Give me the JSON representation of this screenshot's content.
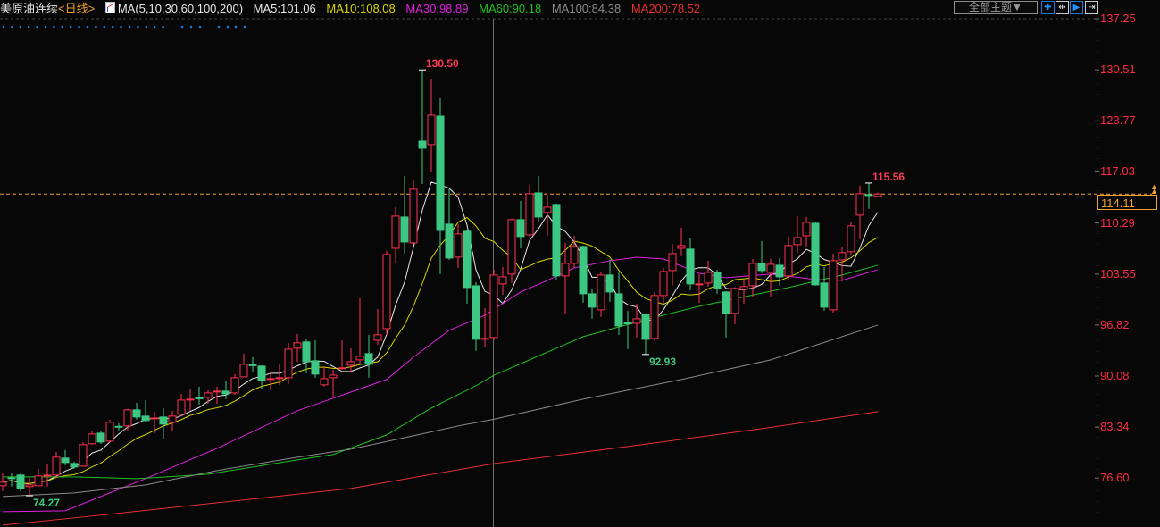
{
  "header": {
    "symbol": "美原油连续",
    "period": "<日线>",
    "ma_params": "MA(5,10,30,60,100,200)",
    "legend": [
      {
        "label": "MA5:101.06",
        "color": "#e8e8e8"
      },
      {
        "label": "MA10:108.08",
        "color": "#d8d800"
      },
      {
        "label": "MA30:98.89",
        "color": "#e020e0"
      },
      {
        "label": "MA60:90.18",
        "color": "#20c020"
      },
      {
        "label": "MA100:84.38",
        "color": "#8a8a8a"
      },
      {
        "label": "MA200:78.52",
        "color": "#e83030"
      }
    ]
  },
  "toolbar": {
    "theme_select": "全部主题▼",
    "icons": [
      "crosshair-icon",
      "fit-range-icon",
      "play-forward-icon",
      "move-right-icon"
    ]
  },
  "colors": {
    "up": "#ff3050",
    "down": "#3cc882",
    "axis_text": "#ff2a44",
    "current_price": "#f0a030",
    "cursor": "#707070",
    "dots": "#1e78d0"
  },
  "chart_data": {
    "type": "candlestick",
    "ylim": [
      70.16,
      137.25
    ],
    "y_ticks": [
      "137.25",
      "130.51",
      "123.77",
      "117.03",
      "110.29",
      "103.55",
      "96.82",
      "90.08",
      "83.34",
      "76.60"
    ],
    "current_price": "114.11",
    "cursor_index": 55,
    "candles_ohlc": [
      [
        75.6,
        77.24,
        74.89,
        76.07
      ],
      [
        76.66,
        77.24,
        75.48,
        76.54
      ],
      [
        77.01,
        77.24,
        74.89,
        75.24
      ],
      [
        75.48,
        76.66,
        74.27,
        75.71
      ],
      [
        75.6,
        77.83,
        75.48,
        76.89
      ],
      [
        76.89,
        78.42,
        75.48,
        77.01
      ],
      [
        77.01,
        80.07,
        76.66,
        79.37
      ],
      [
        79.25,
        80.31,
        78.3,
        78.66
      ],
      [
        78.54,
        78.78,
        77.83,
        78.07
      ],
      [
        78.19,
        81.37,
        78.07,
        81.02
      ],
      [
        81.14,
        82.9,
        81.02,
        82.43
      ],
      [
        82.55,
        82.9,
        81.1,
        81.37
      ],
      [
        81.49,
        84.32,
        81.3,
        83.97
      ],
      [
        83.44,
        83.85,
        82.78,
        83.38
      ],
      [
        83.5,
        85.74,
        82.78,
        85.62
      ],
      [
        85.62,
        86.56,
        84.32,
        84.67
      ],
      [
        84.79,
        86.91,
        83.97,
        84.2
      ],
      [
        84.5,
        85.38,
        82.55,
        84.55
      ],
      [
        84.67,
        85.85,
        81.72,
        83.73
      ],
      [
        83.97,
        85.5,
        82.78,
        84.79
      ],
      [
        85.03,
        87.73,
        84.8,
        86.91
      ],
      [
        86.98,
        88.32,
        85.5,
        87.03
      ],
      [
        87.2,
        88.68,
        86.32,
        87.15
      ],
      [
        87.27,
        88.21,
        86.44,
        87.85
      ],
      [
        88.03,
        88.68,
        86.44,
        88.09
      ],
      [
        88.09,
        89.5,
        87.03,
        87.73
      ],
      [
        87.85,
        90.33,
        87.62,
        89.86
      ],
      [
        89.98,
        93.04,
        89.9,
        91.63
      ],
      [
        91.57,
        92.57,
        90.56,
        91.51
      ],
      [
        91.39,
        91.5,
        88.32,
        89.5
      ],
      [
        89.68,
        90.45,
        88.21,
        89.74
      ],
      [
        89.8,
        91.63,
        88.92,
        89.86
      ],
      [
        89.86,
        94.46,
        89.03,
        93.63
      ],
      [
        93.75,
        95.64,
        91.98,
        94.46
      ],
      [
        94.58,
        95.05,
        90.45,
        91.98
      ],
      [
        92.1,
        94.81,
        89.86,
        90.33
      ],
      [
        88.92,
        91.39,
        88.68,
        89.74
      ],
      [
        89.86,
        90.92,
        87.27,
        90.21
      ],
      [
        91.1,
        94.81,
        91.04,
        91.16
      ],
      [
        91.51,
        93.75,
        90.56,
        91.98
      ],
      [
        92.22,
        100.35,
        91.75,
        92.69
      ],
      [
        93.04,
        95.52,
        89.86,
        91.63
      ],
      [
        94.81,
        98.94,
        94.22,
        95.52
      ],
      [
        96.34,
        106.6,
        95.52,
        106.13
      ],
      [
        106.95,
        112.38,
        105.07,
        111.2
      ],
      [
        111.08,
        116.5,
        106.25,
        107.78
      ],
      [
        107.66,
        115.91,
        107.5,
        114.74
      ],
      [
        121.1,
        130.5,
        115.44,
        120.16
      ],
      [
        120.63,
        129.35,
        116.97,
        124.52
      ],
      [
        124.4,
        126.76,
        103.54,
        109.31
      ],
      [
        110.14,
        114.74,
        105.42,
        105.66
      ],
      [
        105.78,
        110.14,
        104.36,
        108.84
      ],
      [
        109.2,
        109.3,
        99.64,
        101.77
      ],
      [
        102.0,
        102.47,
        93.4,
        94.93
      ],
      [
        94.99,
        99.06,
        93.87,
        95.05
      ],
      [
        95.17,
        104.12,
        94.81,
        103.42
      ],
      [
        102.24,
        104.48,
        100.82,
        103.18
      ],
      [
        103.54,
        110.9,
        102.36,
        110.73
      ],
      [
        110.73,
        113.2,
        106.95,
        108.49
      ],
      [
        108.72,
        115.32,
        108.5,
        114.15
      ],
      [
        114.26,
        116.5,
        110.49,
        111.08
      ],
      [
        111.67,
        114.03,
        108.6,
        112.38
      ],
      [
        112.73,
        112.85,
        102.83,
        103.3
      ],
      [
        103.3,
        107.66,
        98.35,
        104.95
      ],
      [
        104.95,
        108.6,
        104.36,
        107.19
      ],
      [
        107.19,
        107.3,
        99.76,
        100.94
      ],
      [
        100.94,
        101.65,
        97.64,
        99.17
      ],
      [
        98.82,
        103.77,
        97.88,
        103.42
      ],
      [
        103.42,
        105.42,
        99.88,
        101.18
      ],
      [
        100.94,
        103.77,
        95.52,
        96.7
      ],
      [
        97.1,
        98.7,
        93.63,
        97.05
      ],
      [
        97.05,
        99.64,
        95.17,
        97.64
      ],
      [
        98.23,
        98.35,
        92.93,
        94.93
      ],
      [
        95.05,
        101.18,
        94.69,
        100.71
      ],
      [
        100.71,
        104.36,
        99.64,
        103.89
      ],
      [
        104.01,
        107.54,
        102.0,
        106.25
      ],
      [
        106.95,
        109.67,
        105.89,
        107.31
      ],
      [
        106.84,
        108.25,
        101.41,
        102.24
      ],
      [
        102.18,
        103.54,
        99.76,
        102.24
      ],
      [
        102.36,
        105.3,
        101.89,
        103.77
      ],
      [
        103.77,
        104.12,
        100.94,
        101.65
      ],
      [
        101.18,
        101.3,
        95.17,
        98.35
      ],
      [
        98.35,
        101.8,
        96.93,
        101.65
      ],
      [
        101.53,
        102.71,
        99.64,
        101.89
      ],
      [
        102.0,
        105.54,
        100.47,
        104.95
      ],
      [
        104.95,
        107.9,
        103.65,
        104.01
      ],
      [
        103.77,
        105.54,
        100.59,
        104.83
      ],
      [
        104.71,
        105.66,
        102.0,
        103.18
      ],
      [
        103.3,
        108.49,
        102.83,
        107.31
      ],
      [
        107.43,
        111.2,
        106.37,
        108.37
      ],
      [
        108.6,
        111.08,
        107.07,
        110.37
      ],
      [
        110.25,
        110.37,
        102.0,
        102.12
      ],
      [
        102.36,
        104.48,
        98.7,
        99.17
      ],
      [
        98.82,
        106.25,
        98.47,
        105.3
      ],
      [
        105.42,
        107.19,
        102.59,
        106.37
      ],
      [
        106.5,
        110.49,
        106.13,
        109.9
      ],
      [
        111.32,
        115.21,
        108.13,
        114.15
      ],
      [
        114.03,
        115.56,
        112.15,
        113.98
      ],
      [
        113.8,
        114.3,
        113.75,
        114.11
      ]
    ],
    "moving_averages": {
      "MA5": {
        "period": 5,
        "color": "#e8e8e8"
      },
      "MA10": {
        "period": 10,
        "color": "#d8d800"
      },
      "MA30": {
        "color": "#e020e0",
        "points": [
          [
            0,
            72.17
          ],
          [
            7,
            72.29
          ],
          [
            16,
            76.54
          ],
          [
            24,
            80.54
          ],
          [
            33,
            85.5
          ],
          [
            43,
            89.62
          ],
          [
            46,
            92.57
          ],
          [
            50,
            96.11
          ],
          [
            54,
            98.11
          ],
          [
            55,
            98.89
          ],
          [
            58,
            101.18
          ],
          [
            61,
            102.71
          ],
          [
            64,
            104.36
          ],
          [
            68,
            105.3
          ],
          [
            71,
            105.77
          ],
          [
            74,
            105.54
          ],
          [
            78,
            103.65
          ],
          [
            81,
            103.06
          ],
          [
            86,
            103.54
          ],
          [
            91,
            102.83
          ],
          [
            94,
            102.71
          ],
          [
            98,
            104.12
          ]
        ]
      },
      "MA60": {
        "color": "#20c020",
        "points": [
          [
            0,
            76.77
          ],
          [
            8,
            76.77
          ],
          [
            15,
            76.54
          ],
          [
            20,
            76.89
          ],
          [
            23,
            77.13
          ],
          [
            33,
            79.01
          ],
          [
            37,
            79.72
          ],
          [
            43,
            82.31
          ],
          [
            48,
            85.85
          ],
          [
            53,
            88.8
          ],
          [
            55,
            90.18
          ],
          [
            59,
            92.22
          ],
          [
            65,
            95.28
          ],
          [
            72,
            97.52
          ],
          [
            78,
            99.29
          ],
          [
            88,
            101.77
          ],
          [
            94,
            103.42
          ],
          [
            98,
            104.71
          ]
        ]
      },
      "MA100": {
        "color": "#8a8a8a",
        "points": [
          [
            0,
            74.18
          ],
          [
            8,
            74.65
          ],
          [
            16,
            75.71
          ],
          [
            24,
            77.6
          ],
          [
            33,
            79.37
          ],
          [
            39,
            80.43
          ],
          [
            46,
            82.2
          ],
          [
            51,
            83.49
          ],
          [
            55,
            84.38
          ],
          [
            65,
            87.03
          ],
          [
            76,
            89.62
          ],
          [
            86,
            92.22
          ],
          [
            90,
            93.75
          ],
          [
            98,
            96.81
          ]
        ]
      },
      "MA200": {
        "color": "#e83030",
        "points": [
          [
            0,
            70.4
          ],
          [
            9,
            71.47
          ],
          [
            24,
            73.35
          ],
          [
            39,
            75.24
          ],
          [
            55,
            78.52
          ],
          [
            70,
            80.78
          ],
          [
            85,
            83.14
          ],
          [
            98,
            85.38
          ]
        ]
      }
    },
    "annotations": [
      {
        "label": "130.50",
        "index": 47,
        "price": 130.5,
        "kind": "high"
      },
      {
        "label": "115.56",
        "index": 97,
        "price": 115.56,
        "kind": "high"
      },
      {
        "label": "92.93",
        "index": 72,
        "price": 92.93,
        "kind": "low"
      },
      {
        "label": "74.27",
        "index": 3,
        "price": 74.27,
        "kind": "low"
      }
    ]
  }
}
